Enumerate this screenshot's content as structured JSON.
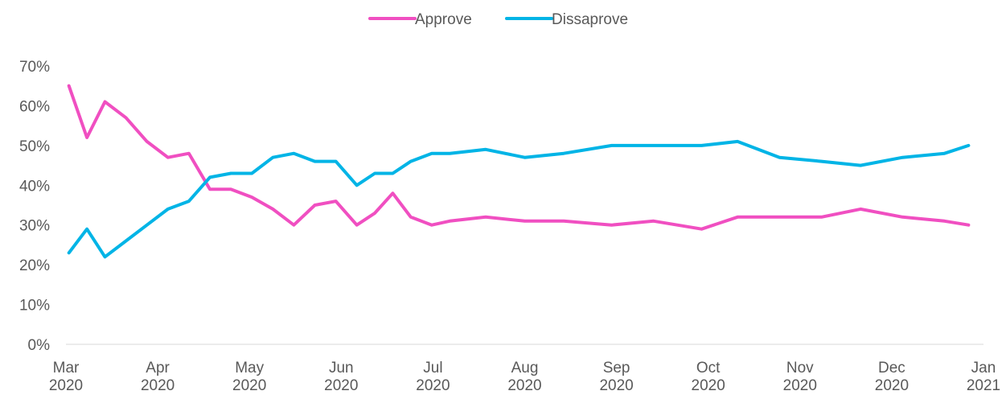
{
  "chart_data": {
    "type": "line",
    "title": "",
    "xlabel": "",
    "ylabel": "",
    "ylim": [
      0,
      70
    ],
    "yticks": [
      "0%",
      "10%",
      "20%",
      "30%",
      "40%",
      "50%",
      "60%",
      "70%"
    ],
    "xlim": [
      "2020-03-01",
      "2021-01-01"
    ],
    "xticks": [
      {
        "month": "Mar",
        "year": "2020"
      },
      {
        "month": "Apr",
        "year": "2020"
      },
      {
        "month": "May",
        "year": "2020"
      },
      {
        "month": "Jun",
        "year": "2020"
      },
      {
        "month": "Jul",
        "year": "2020"
      },
      {
        "month": "Aug",
        "year": "2020"
      },
      {
        "month": "Sep",
        "year": "2020"
      },
      {
        "month": "Oct",
        "year": "2020"
      },
      {
        "month": "Nov",
        "year": "2020"
      },
      {
        "month": "Dec",
        "year": "2020"
      },
      {
        "month": "Jan",
        "year": "2021"
      }
    ],
    "grid": false,
    "legend_position": "top-center",
    "x": [
      "2020-03-02",
      "2020-03-08",
      "2020-03-14",
      "2020-03-21",
      "2020-03-28",
      "2020-04-04",
      "2020-04-11",
      "2020-04-18",
      "2020-04-25",
      "2020-05-02",
      "2020-05-09",
      "2020-05-16",
      "2020-05-23",
      "2020-05-30",
      "2020-06-06",
      "2020-06-12",
      "2020-06-18",
      "2020-06-24",
      "2020-07-01",
      "2020-07-07",
      "2020-07-19",
      "2020-08-01",
      "2020-08-14",
      "2020-08-30",
      "2020-09-13",
      "2020-09-29",
      "2020-10-11",
      "2020-10-25",
      "2020-11-08",
      "2020-11-21",
      "2020-12-05",
      "2020-12-19",
      "2020-12-27"
    ],
    "series": [
      {
        "name": "Approve",
        "color": "#f04fc1",
        "values": [
          65,
          52,
          61,
          57,
          51,
          47,
          48,
          39,
          39,
          37,
          34,
          30,
          35,
          36,
          30,
          33,
          38,
          32,
          30,
          31,
          32,
          31,
          31,
          30,
          31,
          29,
          32,
          32,
          32,
          34,
          32,
          31,
          30
        ]
      },
      {
        "name": "Dissaprove",
        "color": "#00b4e6",
        "values": [
          23,
          29,
          22,
          26,
          30,
          34,
          36,
          42,
          43,
          43,
          47,
          48,
          46,
          46,
          40,
          43,
          43,
          46,
          48,
          48,
          49,
          47,
          48,
          50,
          50,
          50,
          51,
          47,
          46,
          45,
          47,
          48,
          50
        ]
      }
    ]
  }
}
